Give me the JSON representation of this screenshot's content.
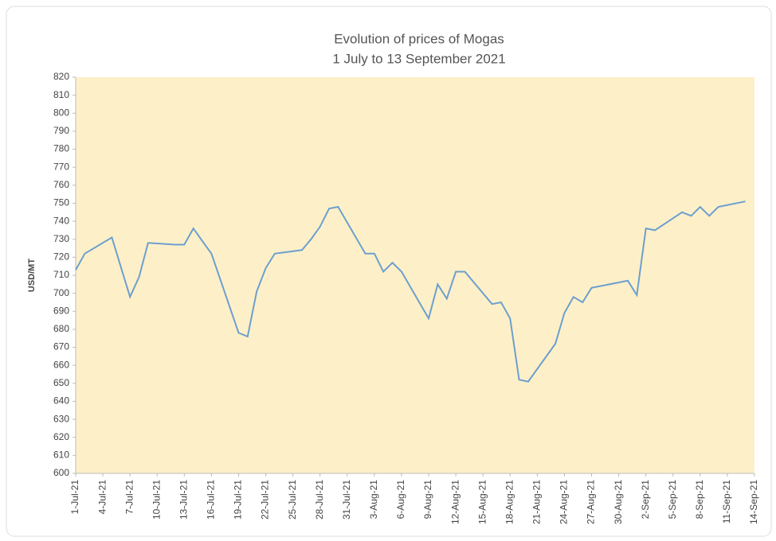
{
  "chart_data": {
    "type": "line",
    "title": "Evolution of prices of Mogas",
    "subtitle": "1 July to 13 September 2021",
    "y_label": "USD/MT",
    "x": [
      "2021-07-01",
      "2021-07-02",
      "2021-07-05",
      "2021-07-07",
      "2021-07-08",
      "2021-07-09",
      "2021-07-12",
      "2021-07-13",
      "2021-07-14",
      "2021-07-15",
      "2021-07-16",
      "2021-07-19",
      "2021-07-20",
      "2021-07-21",
      "2021-07-22",
      "2021-07-23",
      "2021-07-26",
      "2021-07-27",
      "2021-07-28",
      "2021-07-29",
      "2021-07-30",
      "2021-08-02",
      "2021-08-03",
      "2021-08-04",
      "2021-08-05",
      "2021-08-06",
      "2021-08-09",
      "2021-08-10",
      "2021-08-11",
      "2021-08-12",
      "2021-08-13",
      "2021-08-16",
      "2021-08-17",
      "2021-08-18",
      "2021-08-19",
      "2021-08-20",
      "2021-08-23",
      "2021-08-24",
      "2021-08-25",
      "2021-08-26",
      "2021-08-27",
      "2021-08-31",
      "2021-09-01",
      "2021-09-02",
      "2021-09-03",
      "2021-09-06",
      "2021-09-07",
      "2021-09-08",
      "2021-09-09",
      "2021-09-10",
      "2021-09-13"
    ],
    "series": [
      {
        "name": "Mogas",
        "color": "#6d9fcf",
        "values": [
          713,
          722,
          731,
          698,
          709,
          728,
          727,
          727,
          736,
          729,
          722,
          678,
          676,
          701,
          714,
          722,
          724,
          730,
          737,
          747,
          748,
          722,
          722,
          712,
          717,
          712,
          686,
          705,
          697,
          712,
          712,
          694,
          695,
          686,
          652,
          651,
          672,
          689,
          698,
          695,
          703,
          707,
          699,
          736,
          735,
          745,
          743,
          748,
          743,
          748,
          751
        ]
      }
    ],
    "xlim": [
      "2021-07-01",
      "2021-09-14"
    ],
    "xticks": [
      {
        "value": "2021-07-01",
        "label": "1-Jul-21"
      },
      {
        "value": "2021-07-04",
        "label": "4-Jul-21"
      },
      {
        "value": "2021-07-07",
        "label": "7-Jul-21"
      },
      {
        "value": "2021-07-10",
        "label": "10-Jul-21"
      },
      {
        "value": "2021-07-13",
        "label": "13-Jul-21"
      },
      {
        "value": "2021-07-16",
        "label": "16-Jul-21"
      },
      {
        "value": "2021-07-19",
        "label": "19-Jul-21"
      },
      {
        "value": "2021-07-22",
        "label": "22-Jul-21"
      },
      {
        "value": "2021-07-25",
        "label": "25-Jul-21"
      },
      {
        "value": "2021-07-28",
        "label": "28-Jul-21"
      },
      {
        "value": "2021-07-31",
        "label": "31-Jul-21"
      },
      {
        "value": "2021-08-03",
        "label": "3-Aug-21"
      },
      {
        "value": "2021-08-06",
        "label": "6-Aug-21"
      },
      {
        "value": "2021-08-09",
        "label": "9-Aug-21"
      },
      {
        "value": "2021-08-12",
        "label": "12-Aug-21"
      },
      {
        "value": "2021-08-15",
        "label": "15-Aug-21"
      },
      {
        "value": "2021-08-18",
        "label": "18-Aug-21"
      },
      {
        "value": "2021-08-21",
        "label": "21-Aug-21"
      },
      {
        "value": "2021-08-24",
        "label": "24-Aug-21"
      },
      {
        "value": "2021-08-27",
        "label": "27-Aug-21"
      },
      {
        "value": "2021-08-30",
        "label": "30-Aug-21"
      },
      {
        "value": "2021-09-02",
        "label": "2-Sep-21"
      },
      {
        "value": "2021-09-05",
        "label": "5-Sep-21"
      },
      {
        "value": "2021-09-08",
        "label": "8-Sep-21"
      },
      {
        "value": "2021-09-11",
        "label": "11-Sep-21"
      },
      {
        "value": "2021-09-14",
        "label": "14-Sep-21"
      }
    ],
    "ylim": [
      600,
      820
    ],
    "yticks": [
      600,
      610,
      620,
      630,
      640,
      650,
      660,
      670,
      680,
      690,
      700,
      710,
      720,
      730,
      740,
      750,
      760,
      770,
      780,
      790,
      800,
      810,
      820
    ],
    "plot_background": "#fdf0c8"
  }
}
